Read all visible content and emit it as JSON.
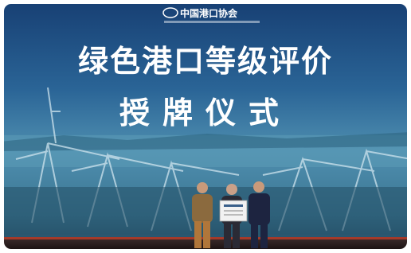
{
  "logo": "中国港口协会",
  "title_line1": "绿色港口等级评价",
  "title_line2": "授牌仪式"
}
